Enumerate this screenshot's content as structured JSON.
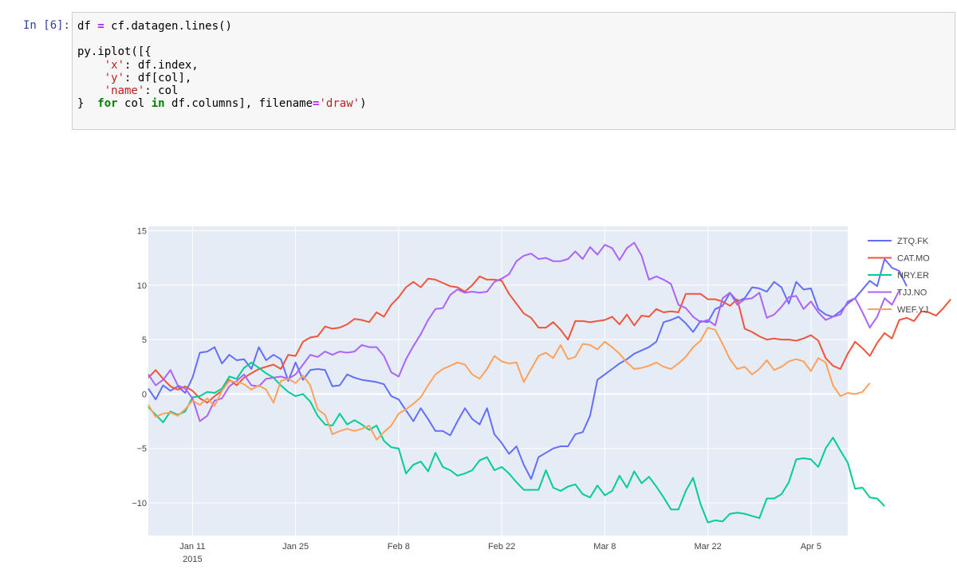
{
  "cell": {
    "prompt": "In [6]:",
    "lines": [
      [
        {
          "t": "df "
        },
        {
          "t": "=",
          "c": "op"
        },
        {
          "t": " cf.datagen.lines()"
        }
      ],
      [
        {
          "t": ""
        }
      ],
      [
        {
          "t": "py.iplot([{"
        }
      ],
      [
        {
          "t": "    "
        },
        {
          "t": "'x'",
          "c": "str"
        },
        {
          "t": ": df.index,"
        }
      ],
      [
        {
          "t": "    "
        },
        {
          "t": "'y'",
          "c": "str"
        },
        {
          "t": ": df[col],"
        }
      ],
      [
        {
          "t": "    "
        },
        {
          "t": "'name'",
          "c": "str"
        },
        {
          "t": ": col"
        }
      ],
      [
        {
          "t": "}  "
        },
        {
          "t": "for",
          "c": "kw"
        },
        {
          "t": " col "
        },
        {
          "t": "in",
          "c": "kw"
        },
        {
          "t": " df.columns], filename"
        },
        {
          "t": "=",
          "c": "op"
        },
        {
          "t": "'draw'",
          "c": "str"
        },
        {
          "t": ")"
        }
      ]
    ]
  },
  "chart_data": {
    "type": "line",
    "x_start": "2015-01-05",
    "x_ticks": [
      {
        "label": "Jan 11",
        "sub": "2015",
        "date": "2015-01-11"
      },
      {
        "label": "Jan 25",
        "date": "2015-01-25"
      },
      {
        "label": "Feb 8",
        "date": "2015-02-08"
      },
      {
        "label": "Feb 22",
        "date": "2015-02-22"
      },
      {
        "label": "Mar 8",
        "date": "2015-03-08"
      },
      {
        "label": "Mar 22",
        "date": "2015-03-22"
      },
      {
        "label": "Apr 5",
        "date": "2015-04-05"
      }
    ],
    "xlim": [
      "2015-01-05",
      "2015-04-10"
    ],
    "ylim": [
      -13,
      15.4
    ],
    "y_ticks": [
      15,
      10,
      5,
      0,
      -5,
      -10
    ],
    "y_tick_labels": [
      "15",
      "10",
      "5",
      "0",
      "−5",
      "−10"
    ],
    "grid": true,
    "legend_position": "right",
    "colors": {
      "plot_bg": "#e5ecf6",
      "grid": "#ffffff",
      "tick_text": "#444444"
    },
    "series": [
      {
        "name": "ZTQ.FK",
        "color": "#636efa",
        "values": [
          0.5,
          -0.5,
          0.8,
          0.3,
          0.7,
          0.1,
          1.5,
          3.8,
          3.9,
          4.3,
          2.8,
          3.6,
          3.1,
          3.2,
          2.3,
          4.3,
          3.1,
          3.6,
          3.2,
          1.2,
          2.9,
          1.3,
          2.2,
          2.3,
          2.2,
          0.7,
          0.8,
          1.8,
          1.5,
          1.3,
          1.2,
          1.1,
          0.9,
          -0.2,
          -0.5,
          -1.5,
          -2.5,
          -1.3,
          -2.3,
          -3.4,
          -3.4,
          -3.8,
          -2.5,
          -1.3,
          -2.3,
          -2.8,
          -1.3,
          -3.7,
          -4.5,
          -5.5,
          -4.8,
          -6.5,
          -7.8,
          -5.8,
          -5.4,
          -5.0,
          -4.8,
          -4.8,
          -3.7,
          -3.5,
          -2.0,
          1.3,
          1.8,
          2.3,
          2.8,
          3.2,
          3.7,
          4.0,
          4.3,
          4.8,
          6.6,
          6.8,
          7.1,
          6.5,
          5.7,
          6.7,
          6.6,
          7.8,
          8.1,
          9.3,
          8.5,
          8.8,
          9.8,
          9.7,
          9.4,
          10.3,
          9.8,
          8.3,
          10.3,
          9.6,
          9.7,
          7.8,
          7.3,
          7.1,
          7.6,
          8.3,
          8.8,
          9.6,
          10.4,
          9.9,
          12.4,
          11.6,
          11.3,
          9.9
        ]
      },
      {
        "name": "CAT.MO",
        "color": "#ef553b",
        "values": [
          1.5,
          2.2,
          1.4,
          0.7,
          0.4,
          0.7,
          0.3,
          -0.4,
          -0.8,
          -0.2,
          0.3,
          1.3,
          0.8,
          1.5,
          1.9,
          2.3,
          2.5,
          2.7,
          2.3,
          3.6,
          3.5,
          4.8,
          5.2,
          5.3,
          6.2,
          6.0,
          6.1,
          6.4,
          6.9,
          6.8,
          6.6,
          7.5,
          7.1,
          8.2,
          8.9,
          9.8,
          10.3,
          9.8,
          10.6,
          10.5,
          10.2,
          9.9,
          9.8,
          9.4,
          10.0,
          10.8,
          10.5,
          10.5,
          10.4,
          9.2,
          8.3,
          7.4,
          7.0,
          6.1,
          6.1,
          6.6,
          5.9,
          5.0,
          6.7,
          6.7,
          6.6,
          6.7,
          6.8,
          7.1,
          6.4,
          7.3,
          6.3,
          7.2,
          7.1,
          7.8,
          7.5,
          7.6,
          7.5,
          9.2,
          9.2,
          9.2,
          8.7,
          8.7,
          8.5,
          8.1,
          8.7,
          6.0,
          5.7,
          5.3,
          5.0,
          5.1,
          5.0,
          5.0,
          4.9,
          5.1,
          5.4,
          4.9,
          3.3,
          2.6,
          2.3,
          3.7,
          4.8,
          4.2,
          3.5,
          4.7,
          5.6,
          5.1,
          6.8,
          7.0,
          6.7,
          7.6,
          7.5,
          7.2,
          7.9,
          8.7
        ]
      },
      {
        "name": "NRY.ER",
        "color": "#00cc96",
        "values": [
          -1.2,
          -1.9,
          -2.6,
          -1.6,
          -1.9,
          -1.6,
          -0.3,
          -0.2,
          0.2,
          0.1,
          0.5,
          1.6,
          1.4,
          2.4,
          2.9,
          2.4,
          1.9,
          1.5,
          0.8,
          0.2,
          -0.2,
          0.0,
          -0.7,
          -2.0,
          -2.8,
          -2.9,
          -1.8,
          -2.8,
          -2.4,
          -2.8,
          -3.3,
          -2.9,
          -4.3,
          -4.9,
          -5.0,
          -7.3,
          -6.5,
          -6.2,
          -7.1,
          -5.4,
          -6.7,
          -7.0,
          -7.5,
          -7.3,
          -7.0,
          -6.1,
          -5.8,
          -7.0,
          -6.7,
          -7.3,
          -8.1,
          -8.8,
          -8.8,
          -8.8,
          -7.0,
          -8.6,
          -8.9,
          -8.5,
          -8.3,
          -9.2,
          -9.5,
          -8.4,
          -9.3,
          -8.9,
          -7.5,
          -8.6,
          -7.1,
          -8.2,
          -7.6,
          -8.5,
          -9.5,
          -10.6,
          -10.6,
          -8.9,
          -7.7,
          -10.1,
          -11.8,
          -11.6,
          -11.7,
          -11.0,
          -10.9,
          -11.0,
          -11.2,
          -11.4,
          -9.6,
          -9.6,
          -9.2,
          -8.1,
          -6.0,
          -5.9,
          -6.0,
          -6.7,
          -5.0,
          -4.0,
          -5.2,
          -6.3,
          -8.7,
          -8.6,
          -9.5,
          -9.6,
          -10.3
        ]
      },
      {
        "name": "TJJ.NO",
        "color": "#ab63fa",
        "values": [
          1.8,
          0.8,
          1.3,
          2.2,
          0.8,
          0.5,
          -0.4,
          -2.5,
          -2.0,
          -0.6,
          -0.4,
          0.7,
          1.2,
          1.8,
          0.8,
          0.7,
          1.4,
          1.5,
          1.6,
          1.4,
          1.8,
          2.7,
          3.6,
          3.4,
          3.9,
          3.6,
          3.9,
          3.8,
          3.9,
          4.5,
          4.3,
          4.3,
          3.5,
          2.0,
          1.6,
          3.2,
          4.4,
          5.5,
          6.8,
          7.8,
          7.9,
          9.1,
          9.6,
          9.3,
          9.4,
          9.3,
          9.4,
          10.3,
          10.6,
          11.0,
          12.2,
          12.7,
          12.9,
          12.4,
          12.5,
          12.2,
          12.2,
          12.4,
          13.1,
          12.4,
          13.5,
          12.8,
          13.7,
          13.4,
          12.3,
          13.4,
          13.9,
          12.7,
          10.5,
          10.8,
          10.5,
          10.1,
          8.2,
          7.9,
          7.1,
          6.6,
          6.8,
          6.3,
          8.8,
          9.3,
          8.2,
          8.7,
          8.8,
          9.3,
          7.0,
          7.3,
          8.0,
          8.9,
          9.0,
          7.8,
          8.5,
          7.5,
          6.8,
          7.1,
          7.3,
          8.5,
          8.8,
          7.5,
          6.1,
          7.1,
          8.8,
          8.2,
          9.5
        ]
      },
      {
        "name": "WEF.YJ",
        "color": "#ffa15a",
        "values": [
          -1.0,
          -2.1,
          -1.8,
          -1.7,
          -2.0,
          -1.4,
          -0.6,
          -1.0,
          -0.4,
          -1.1,
          0.3,
          1.2,
          1.1,
          0.9,
          0.4,
          0.8,
          0.4,
          -0.8,
          1.2,
          1.4,
          1.0,
          1.7,
          0.8,
          -1.4,
          -1.9,
          -3.7,
          -3.4,
          -3.2,
          -3.4,
          -3.2,
          -2.9,
          -4.2,
          -3.5,
          -2.9,
          -1.8,
          -1.4,
          -0.9,
          -0.3,
          0.8,
          1.8,
          2.3,
          2.6,
          2.9,
          2.7,
          1.8,
          1.4,
          2.3,
          3.5,
          3.0,
          2.8,
          2.9,
          1.1,
          2.3,
          3.5,
          3.8,
          3.3,
          4.5,
          3.2,
          3.4,
          4.6,
          4.5,
          4.1,
          4.8,
          4.3,
          3.7,
          2.9,
          2.3,
          2.4,
          2.6,
          2.9,
          2.5,
          2.3,
          2.8,
          3.4,
          4.3,
          4.9,
          6.1,
          5.9,
          4.6,
          3.2,
          2.3,
          2.5,
          1.8,
          2.3,
          3.1,
          2.2,
          2.5,
          3.0,
          3.2,
          3.0,
          2.1,
          3.3,
          2.9,
          0.8,
          -0.2,
          0.1,
          0.0,
          0.2,
          1.0
        ]
      }
    ]
  }
}
